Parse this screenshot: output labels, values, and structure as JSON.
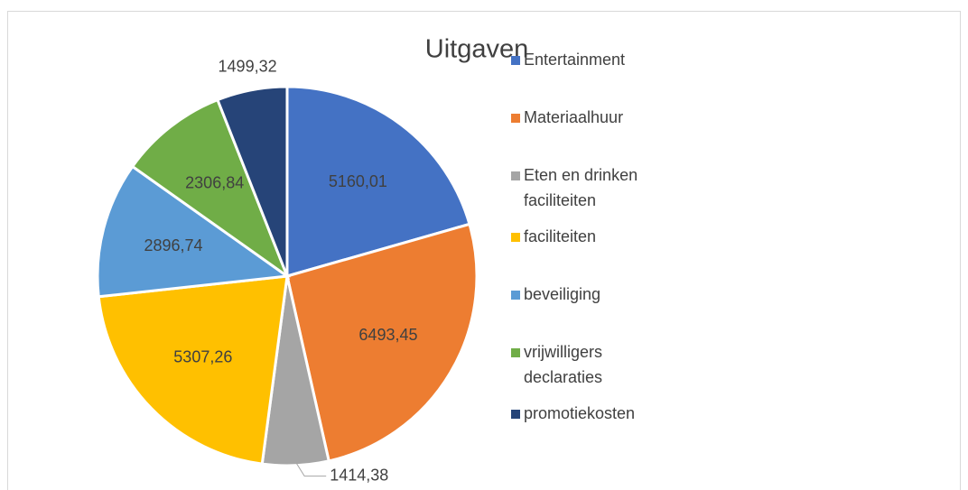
{
  "chart_data": {
    "type": "pie",
    "title": "Uitgaven",
    "categories": [
      "Entertainment",
      "Materiaalhuur",
      "Eten en drinken faciliteiten",
      "faciliteiten",
      "beveiliging",
      "vrijwilligers declaraties",
      "promotiekosten"
    ],
    "values": [
      5160.01,
      6493.45,
      1414.38,
      5307.26,
      2896.74,
      2306.84,
      1499.32
    ],
    "value_labels": [
      "5160,01",
      "6493,45",
      "1414,38",
      "5307,26",
      "2896,74",
      "2306,84",
      "1499,32"
    ],
    "colors": [
      "#4472c4",
      "#ed7d31",
      "#a5a5a5",
      "#ffc000",
      "#5b9bd5",
      "#70ad47",
      "#264478"
    ],
    "legend": "right"
  }
}
